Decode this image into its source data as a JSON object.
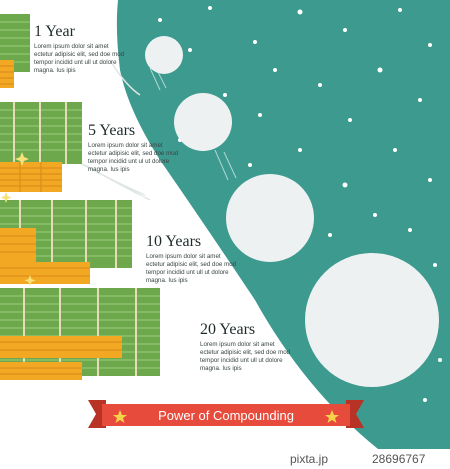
{
  "sections": [
    {
      "year_label": "1 Year",
      "text": "Lorem ipsum dolor sit amet ectetur adipisic elit, sed doe mod tempor incidid unt ull ut dolore magna. Ius ipis"
    },
    {
      "year_label": "5 Years",
      "text": "Lorem ipsum dolor sit amet ectetur adipisic elit, sed doe mod tempor incidid unt ul ut dolore magna. Ius ipis"
    },
    {
      "year_label": "10 Years",
      "text": "Lorem ipsum dolor sit amet ectetur adipisic elit, sed doe mod tempor incidid unt ull ut dolore magna. Ius ipis"
    },
    {
      "year_label": "20 Years",
      "text": "Lorem ipsum dolor sit amet ectetur adipisic elit, sed doe mod tempor incidid unt ull ut dolore magna. Ius ipis"
    }
  ],
  "banner": {
    "title": "Power of Compounding"
  },
  "watermark": {
    "brand": "PIXTA",
    "site": "pixta.jp",
    "image_number": "28696767"
  },
  "colors": {
    "teal": "#3c9a8e",
    "snowball": "#eef1f2",
    "cash_green": "#6da84c",
    "coin_orange": "#f2a823",
    "ribbon_red": "#e64b3c",
    "star_yellow": "#f7d34a"
  },
  "icons": [
    "snowflake-dot",
    "star-icon",
    "sparkle-icon"
  ]
}
